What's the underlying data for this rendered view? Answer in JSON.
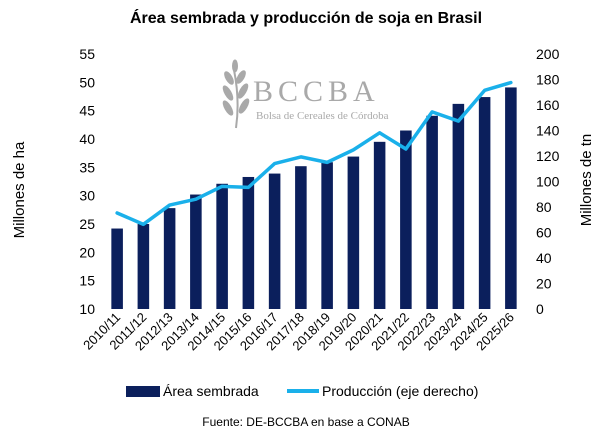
{
  "chart_data": {
    "type": "bar+line",
    "title": "Área sembrada y producción de soja en Brasil",
    "ylabel_left": "Millones de ha",
    "ylabel_right": "Millones de tn",
    "ylim_left": [
      10,
      55
    ],
    "yticks_left": [
      10,
      15,
      20,
      25,
      30,
      35,
      40,
      45,
      50,
      55
    ],
    "ylim_right": [
      0,
      200
    ],
    "yticks_right": [
      0,
      20,
      40,
      60,
      80,
      100,
      120,
      140,
      160,
      180,
      200
    ],
    "categories": [
      "2010/11",
      "2011/12",
      "2012/13",
      "2013/14",
      "2014/15",
      "2015/16",
      "2016/17",
      "2017/18",
      "2018/19",
      "2019/20",
      "2020/21",
      "2021/22",
      "2022/23",
      "2023/24",
      "2024/25",
      "2025/26"
    ],
    "series": [
      {
        "name": "Área sembrada",
        "type": "bar",
        "axis": "left",
        "color": "#0b1f5c",
        "values": [
          24.2,
          25.0,
          27.8,
          30.2,
          32.1,
          33.3,
          33.9,
          35.2,
          35.9,
          36.9,
          39.5,
          41.5,
          44.1,
          46.2,
          47.4,
          49.1
        ]
      },
      {
        "name": "Producción (eje derecho)",
        "type": "line",
        "axis": "right",
        "color": "#1ab0ea",
        "values": [
          75.3,
          66.4,
          81.5,
          86.1,
          96.2,
          95.4,
          114.1,
          119.3,
          115.0,
          124.8,
          138.2,
          125.5,
          154.6,
          147.4,
          171.5,
          177.6
        ]
      }
    ],
    "legend_position": "bottom",
    "grid": false
  },
  "watermark": {
    "name": "BCCBA",
    "subtitle": "Bolsa de Cereales de Córdoba",
    "color": "#a9a9a9",
    "icon": "wheat-icon"
  },
  "source": "Fuente: DE-BCCBA en base a CONAB"
}
